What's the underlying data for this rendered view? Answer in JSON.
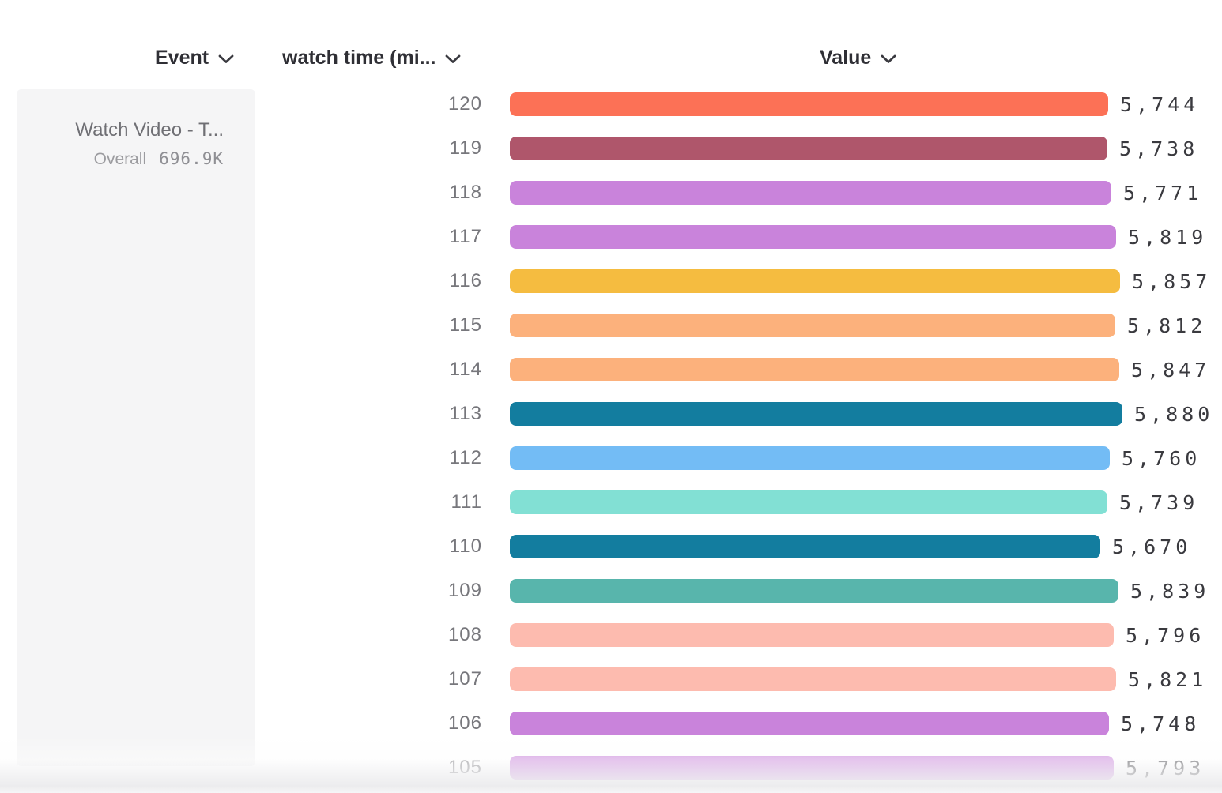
{
  "header": {
    "event_label": "Event",
    "measure_label": "watch time (mi...",
    "value_label": "Value"
  },
  "event_card": {
    "title": "Watch Video - T...",
    "overall_label": "Overall",
    "overall_value": "696.9K"
  },
  "chart_data": {
    "type": "bar",
    "orientation": "horizontal",
    "measure": "watch time (mi...",
    "value_axis": "hidden (values shown as data labels)",
    "x_range": [
      0,
      5880
    ],
    "categories": [
      "120",
      "119",
      "118",
      "117",
      "116",
      "115",
      "114",
      "113",
      "112",
      "111",
      "110",
      "109",
      "108",
      "107",
      "106",
      "105"
    ],
    "values": [
      5744,
      5738,
      5771,
      5819,
      5857,
      5812,
      5847,
      5880,
      5760,
      5739,
      5670,
      5839,
      5796,
      5821,
      5748,
      5793
    ],
    "value_labels": [
      "5,744",
      "5,738",
      "5,771",
      "5,819",
      "5,857",
      "5,812",
      "5,847",
      "5,880",
      "5,760",
      "5,739",
      "5,670",
      "5,839",
      "5,796",
      "5,821",
      "5,748",
      "5,793"
    ],
    "colors": [
      "#FC7156",
      "#AF566B",
      "#C983DB",
      "#C983DB",
      "#F5BC40",
      "#FCB17C",
      "#FCB17C",
      "#137D9F",
      "#73BCF5",
      "#82E0D4",
      "#137D9F",
      "#58B5AC",
      "#FDBBAF",
      "#FDBBAF",
      "#C983DB",
      "#C983DB"
    ],
    "label_color": "#77777c",
    "value_text_color": "#3a3a3f"
  }
}
